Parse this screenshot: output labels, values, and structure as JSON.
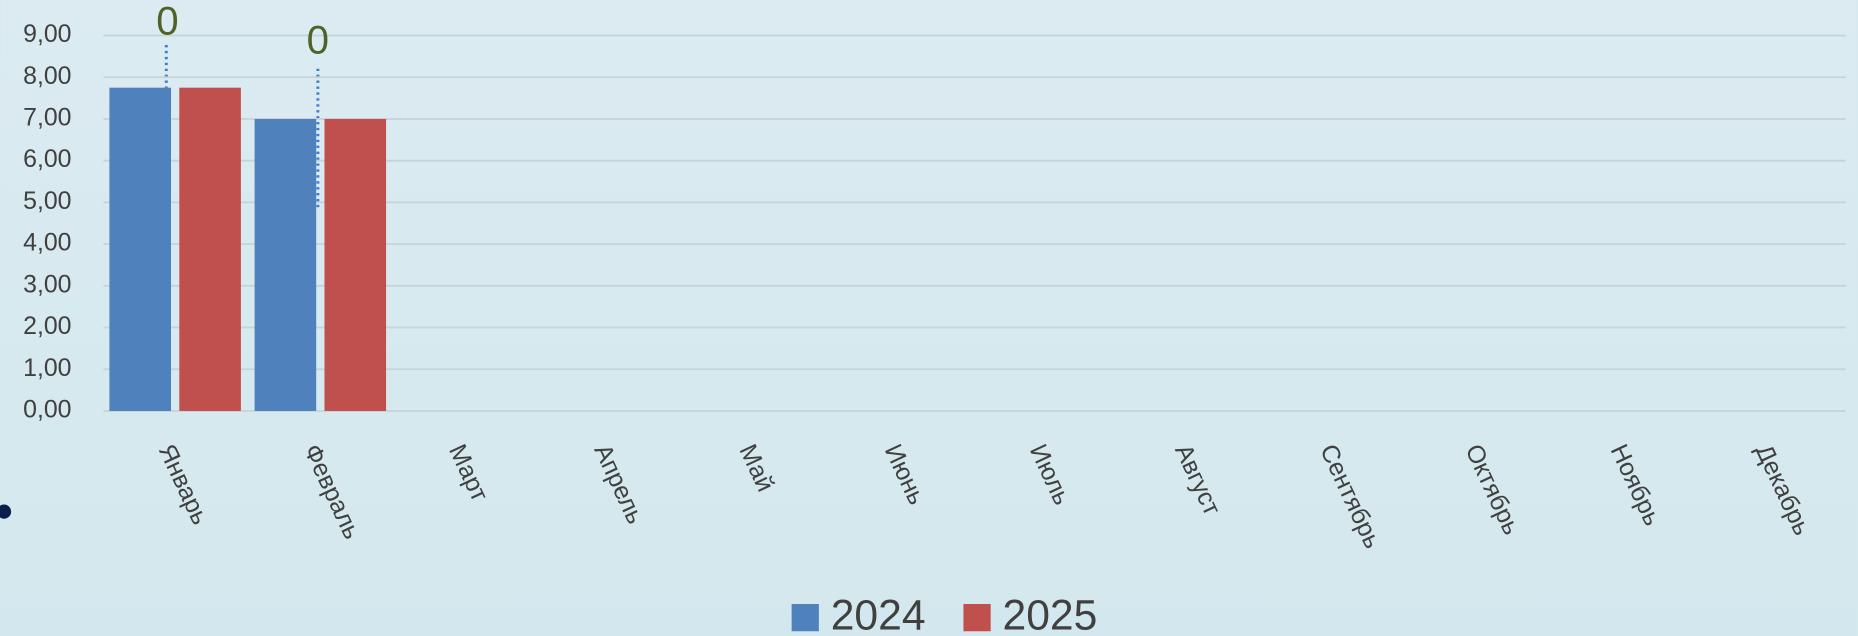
{
  "chart_data": {
    "type": "bar",
    "categories": [
      "Январь",
      "Февраль",
      "Март",
      "Апрель",
      "Май",
      "Июнь",
      "Июль",
      "Август",
      "Сентябрь",
      "Октябрь",
      "Ноябрь",
      "Декабрь"
    ],
    "series": [
      {
        "name": "2024",
        "color": "#4f81bd",
        "values": [
          7.75,
          7.0,
          null,
          null,
          null,
          null,
          null,
          null,
          null,
          null,
          null,
          null
        ]
      },
      {
        "name": "2025",
        "color": "#c0504d",
        "values": [
          7.75,
          7.0,
          null,
          null,
          null,
          null,
          null,
          null,
          null,
          null,
          null,
          null
        ]
      }
    ],
    "annotations": [
      "0",
      "0"
    ],
    "ylim": [
      0,
      9
    ],
    "yticks": [
      {
        "value": 0,
        "label": "0,00"
      },
      {
        "value": 1,
        "label": "1,00"
      },
      {
        "value": 2,
        "label": "2,00"
      },
      {
        "value": 3,
        "label": "3,00"
      },
      {
        "value": 4,
        "label": "4,00"
      },
      {
        "value": 5,
        "label": "5,00"
      },
      {
        "value": 6,
        "label": "6,00"
      },
      {
        "value": 7,
        "label": "7,00"
      },
      {
        "value": 8,
        "label": "8,00"
      },
      {
        "value": 9,
        "label": "9,00"
      }
    ],
    "grid": true,
    "legend": "bottom"
  }
}
